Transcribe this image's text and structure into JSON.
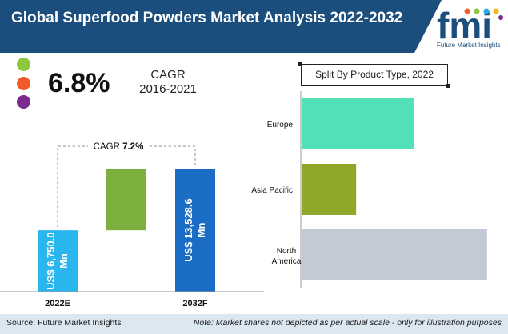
{
  "header": {
    "title": "Global Superfood Powders Market Analysis 2022-2032"
  },
  "logo": {
    "letters": "fmi",
    "company": "Future Market Insights",
    "colors": [
      "#f15a29",
      "#8dc63f",
      "#29abe2",
      "#f7b51e",
      "#7b2a8e"
    ]
  },
  "summary": {
    "cagr_value": "6.8%",
    "cagr_label_line1": "CAGR",
    "cagr_label_line2": "2016-2021",
    "dot_colors": [
      "#8dc63f",
      "#f15a29",
      "#7b2a8e"
    ]
  },
  "split": {
    "title": "Split By Product  Type, 2022"
  },
  "chart_data": [
    {
      "type": "bar",
      "categories": [
        "2022E",
        "2032F"
      ],
      "values": [
        6750.0,
        13528.6
      ],
      "data_labels": [
        "US$ 6,750.0 Mn",
        "US$ 13,528.6 Mn"
      ],
      "colors": [
        "#29b6ef",
        "#1a6cc4",
        "#7daf3f"
      ],
      "annotation": {
        "text_prefix": "CAGR ",
        "text_value": "7.2%"
      },
      "increment": {
        "from": 6750.0,
        "to": 13528.6
      }
    },
    {
      "type": "bar",
      "orientation": "horizontal",
      "categories": [
        "Europe",
        "Asia Pacific",
        "North America"
      ],
      "category_lines": [
        [
          "Europe"
        ],
        [
          "Asia Pacific"
        ],
        [
          "North",
          "America"
        ]
      ],
      "values": [
        0.31,
        0.15,
        0.51
      ],
      "colors": [
        "#52e0b8",
        "#8fa82a",
        "#c4c9d6"
      ]
    }
  ],
  "footer": {
    "source": "Source: Future Market Insights",
    "note": "Note: Market shares not depicted as per actual scale - only for illustration purposes"
  }
}
